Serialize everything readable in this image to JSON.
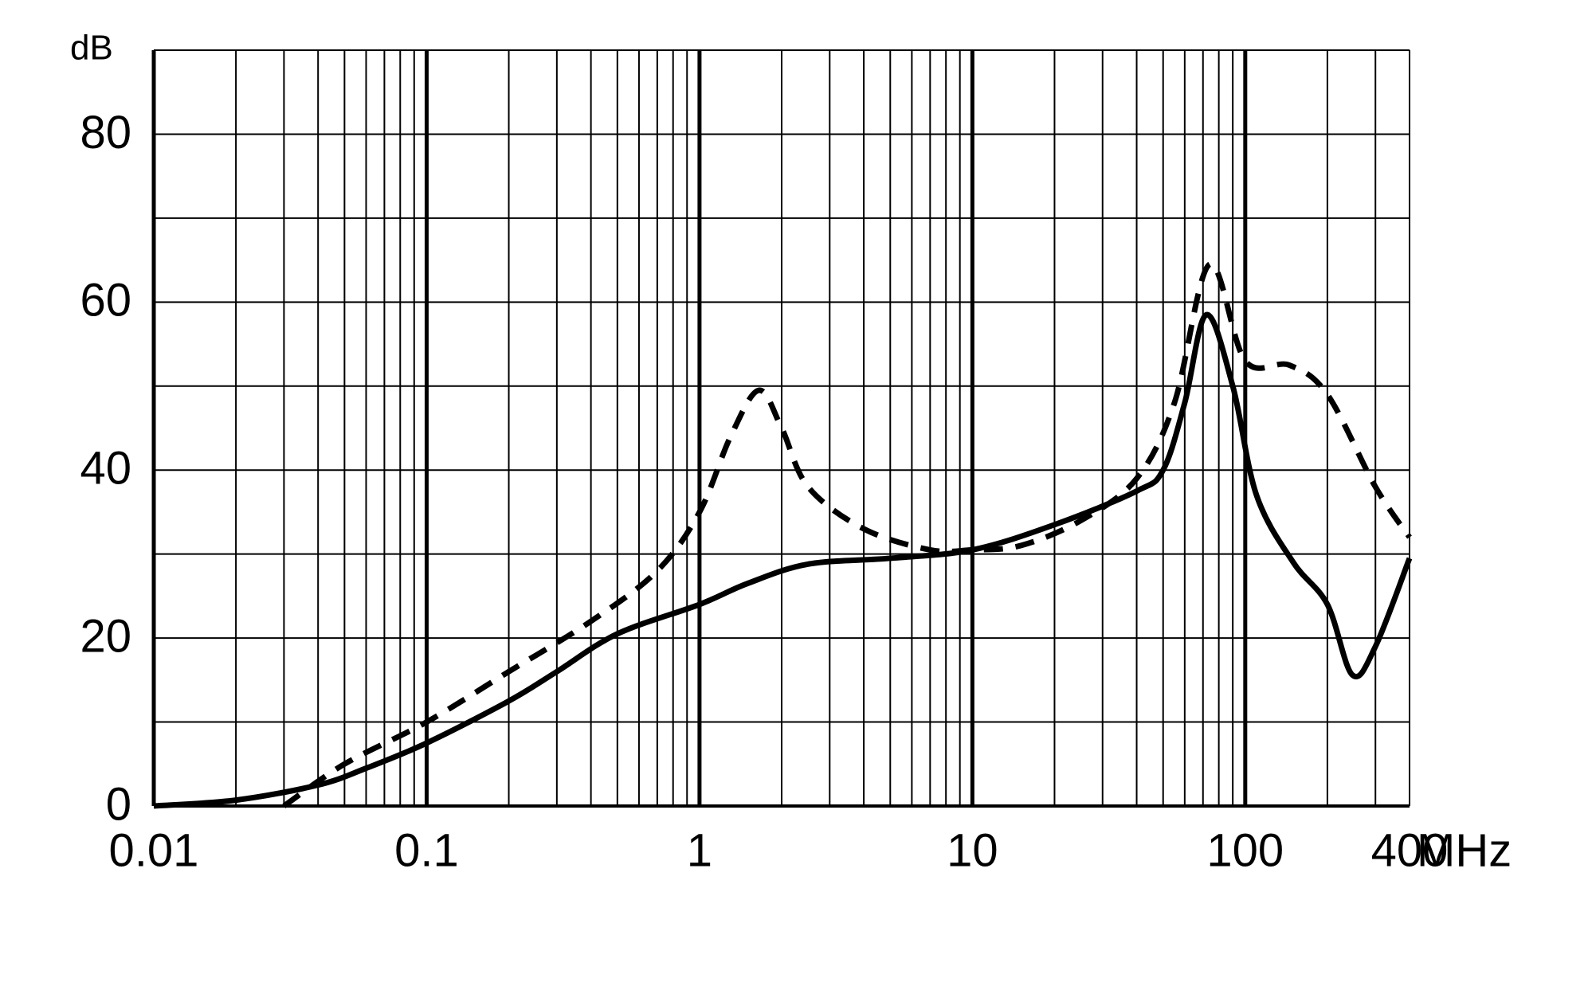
{
  "chart_data": {
    "type": "line",
    "y_unit_label": "dB",
    "x_unit_label": "MHz",
    "xscale": "log",
    "xlim": [
      0.01,
      400
    ],
    "ylim": [
      0,
      90
    ],
    "xticks": [
      0.01,
      0.1,
      1,
      10,
      100,
      400
    ],
    "x_major_grid": [
      0.01,
      0.1,
      1,
      10,
      100
    ],
    "x_minor_grid": [
      0.02,
      0.03,
      0.04,
      0.05,
      0.06,
      0.07,
      0.08,
      0.09,
      0.2,
      0.3,
      0.4,
      0.5,
      0.6,
      0.7,
      0.8,
      0.9,
      2,
      3,
      4,
      5,
      6,
      7,
      8,
      9,
      20,
      30,
      40,
      50,
      60,
      70,
      80,
      90,
      200,
      300,
      400
    ],
    "yticks": [
      0,
      20,
      40,
      60,
      80
    ],
    "y_minor_grid": [
      10,
      30,
      50,
      70,
      90
    ],
    "grid": true,
    "series": [
      {
        "color": "#000000",
        "dashed": false,
        "x": [
          0.01,
          0.02,
          0.04,
          0.06,
          0.1,
          0.2,
          0.3,
          0.5,
          1,
          1.5,
          2.5,
          5,
          10,
          20,
          40,
          50,
          60,
          72,
          90,
          110,
          150,
          200,
          247,
          300,
          400
        ],
        "values": [
          0,
          0.7,
          2.5,
          4.5,
          7.5,
          12.5,
          16,
          20.5,
          24,
          26.5,
          28.8,
          29.5,
          30.5,
          33.5,
          37.5,
          40,
          48,
          58.5,
          50,
          37,
          29,
          24,
          15.6,
          19,
          29.5
        ]
      },
      {
        "color": "#000000",
        "dashed": true,
        "x": [
          0.03,
          0.05,
          0.1,
          0.2,
          0.4,
          0.7,
          1,
          1.3,
          1.65,
          2,
          2.5,
          4,
          7,
          10,
          15,
          25,
          40,
          55,
          74,
          100,
          145,
          200,
          300,
          400
        ],
        "values": [
          0,
          5,
          10,
          16,
          22,
          28,
          35,
          44,
          49.5,
          45,
          38,
          33,
          30.5,
          30.5,
          31,
          34,
          39,
          48,
          64.5,
          53,
          52.5,
          49,
          38,
          32
        ]
      }
    ]
  }
}
